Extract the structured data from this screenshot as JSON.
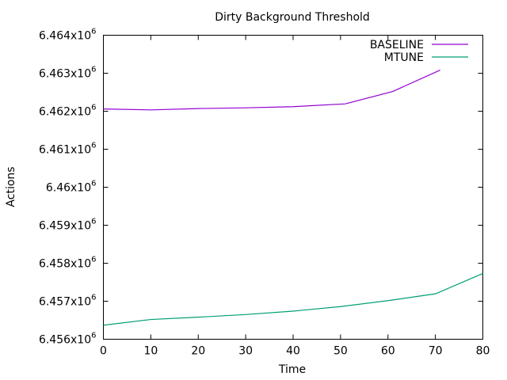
{
  "chart_data": {
    "type": "line",
    "title": "Dirty Background Threshold",
    "xlabel": "Time",
    "ylabel": "Actions",
    "xlim": [
      0,
      80
    ],
    "ylim": [
      6456000,
      6464000
    ],
    "x_ticks": [
      "0",
      "10",
      "20",
      "30",
      "40",
      "50",
      "60",
      "70",
      "80"
    ],
    "y_ticks": [
      {
        "mant": "6.456x10",
        "exp": "6"
      },
      {
        "mant": "6.457x10",
        "exp": "6"
      },
      {
        "mant": "6.458x10",
        "exp": "6"
      },
      {
        "mant": "6.459x10",
        "exp": "6"
      },
      {
        "mant": "6.46x10",
        "exp": "6"
      },
      {
        "mant": "6.461x10",
        "exp": "6"
      },
      {
        "mant": "6.462x10",
        "exp": "6"
      },
      {
        "mant": "6.463x10",
        "exp": "6"
      },
      {
        "mant": "6.464x10",
        "exp": "6"
      }
    ],
    "grid": false,
    "legend_position": "top-right",
    "series": [
      {
        "name": "BASELINE",
        "color": "#9400d3",
        "x": [
          0,
          10,
          20,
          30,
          40,
          51,
          61,
          71
        ],
        "y": [
          6462060,
          6462035,
          6462070,
          6462090,
          6462120,
          6462194,
          6462520,
          6463083
        ]
      },
      {
        "name": "MTUNE",
        "color": "#009e73",
        "x": [
          0,
          10,
          20,
          30,
          40,
          50,
          60,
          70,
          80
        ],
        "y": [
          6456370,
          6456520,
          6456580,
          6456650,
          6456740,
          6456860,
          6457015,
          6457195,
          6457730
        ]
      }
    ]
  }
}
